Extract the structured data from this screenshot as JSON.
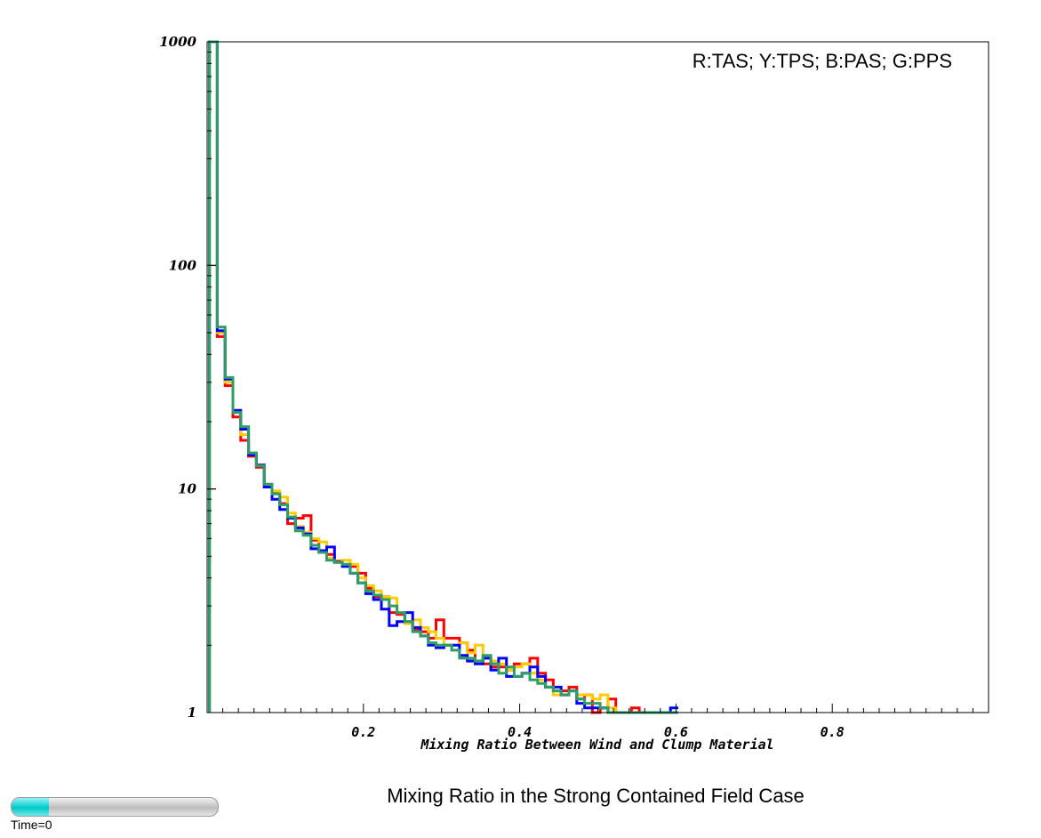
{
  "chart_data": {
    "type": "line",
    "step": true,
    "title": "Mixing Ratio in the Strong Contained Field Case",
    "legend_text": "R:TAS; Y:TPS; B:PAS; G:PPS",
    "legend_position": "top-right",
    "xlabel": "Mixing Ratio Between Wind and Clump Material",
    "ylabel": "",
    "xlim": [
      0,
      1
    ],
    "ylim": [
      1,
      1000
    ],
    "yscale": "log",
    "grid": false,
    "x_ticks": [
      {
        "value": 0.2,
        "label": "0.2"
      },
      {
        "value": 0.4,
        "label": "0.4"
      },
      {
        "value": 0.6,
        "label": "0.6"
      },
      {
        "value": 0.8,
        "label": "0.8"
      }
    ],
    "y_ticks": [
      {
        "value": 1,
        "label": "1"
      },
      {
        "value": 10,
        "label": "10"
      },
      {
        "value": 100,
        "label": "100"
      },
      {
        "value": 1000,
        "label": "1000"
      }
    ],
    "bin_width": 0.01,
    "series": [
      {
        "key": "TAS",
        "color": "#ff0000",
        "values": [
          1000,
          48,
          29,
          21,
          16.5,
          14,
          12.5,
          10.3,
          9.6,
          8.6,
          7.0,
          7.4,
          7.6,
          5.9,
          5.3,
          5.1,
          4.75,
          4.6,
          4.5,
          4.2,
          3.6,
          3.3,
          3.3,
          2.8,
          2.75,
          2.55,
          2.35,
          2.3,
          2.15,
          2.6,
          2.15,
          2.15,
          2.05,
          1.9,
          1.7,
          1.65,
          1.6,
          1.6,
          1.55,
          1.65,
          1.65,
          1.75,
          1.5,
          1.4,
          1.25,
          1.25,
          1.3,
          1.15,
          1.2,
          1.0,
          1.05,
          1.15,
          1.0,
          0.95,
          1.05,
          0.95,
          0.9,
          0.9,
          0.9,
          0.95
        ]
      },
      {
        "key": "TPS",
        "color": "#ffcc00",
        "values": [
          1000,
          50,
          30,
          22,
          17.5,
          14.5,
          12.8,
          10.4,
          9.8,
          9.2,
          7.8,
          6.8,
          6.4,
          6.0,
          5.8,
          4.9,
          4.7,
          4.8,
          4.6,
          4.0,
          3.7,
          3.5,
          3.3,
          3.25,
          2.8,
          2.5,
          2.6,
          2.4,
          2.3,
          2.15,
          2.0,
          2.0,
          2.05,
          1.85,
          2.0,
          1.75,
          1.7,
          1.65,
          1.55,
          1.6,
          1.65,
          1.5,
          1.4,
          1.3,
          1.2,
          1.2,
          1.25,
          1.2,
          1.2,
          1.15,
          1.2,
          1.05,
          1.0,
          0.95,
          0.95,
          0.95,
          0.9,
          0.9,
          0.95,
          0.95
        ]
      },
      {
        "key": "PAS",
        "color": "#0000ff",
        "values": [
          1000,
          51,
          31,
          22.5,
          18.5,
          14.2,
          12.8,
          10.2,
          9.0,
          8.1,
          7.4,
          6.7,
          6.3,
          5.4,
          5.3,
          5.5,
          4.7,
          4.5,
          4.2,
          3.8,
          3.4,
          3.2,
          2.9,
          2.45,
          2.55,
          2.8,
          2.4,
          2.2,
          2.0,
          1.95,
          2.0,
          2.0,
          1.8,
          1.7,
          1.65,
          1.75,
          1.55,
          1.75,
          1.45,
          1.45,
          1.5,
          1.6,
          1.45,
          1.3,
          1.3,
          1.2,
          1.25,
          1.1,
          1.05,
          1.05,
          1.05,
          1.0,
          0.95,
          0.95,
          0.95,
          0.95,
          0.95,
          0.95,
          0.95,
          1.05
        ]
      },
      {
        "key": "PPS",
        "color": "#2e9e68",
        "values": [
          1000,
          53,
          31.5,
          22,
          19,
          14.5,
          12.7,
          10.5,
          9.5,
          8.5,
          7.5,
          6.5,
          6.2,
          5.6,
          5.2,
          4.8,
          4.7,
          4.6,
          4.2,
          3.8,
          3.5,
          3.35,
          3.2,
          3.0,
          2.8,
          2.55,
          2.3,
          2.2,
          2.05,
          2.0,
          2.0,
          1.9,
          1.75,
          1.75,
          1.7,
          1.8,
          1.65,
          1.5,
          1.6,
          1.45,
          1.5,
          1.4,
          1.35,
          1.3,
          1.25,
          1.2,
          1.25,
          1.15,
          1.1,
          1.1,
          1.05,
          1.0,
          1.0,
          1.0,
          0.95,
          0.95,
          0.95,
          0.95,
          0.95,
          0.95
        ]
      }
    ]
  },
  "time_slider": {
    "label": "Time=0",
    "progress": 0.18,
    "fill_color": "#00d0d0"
  }
}
